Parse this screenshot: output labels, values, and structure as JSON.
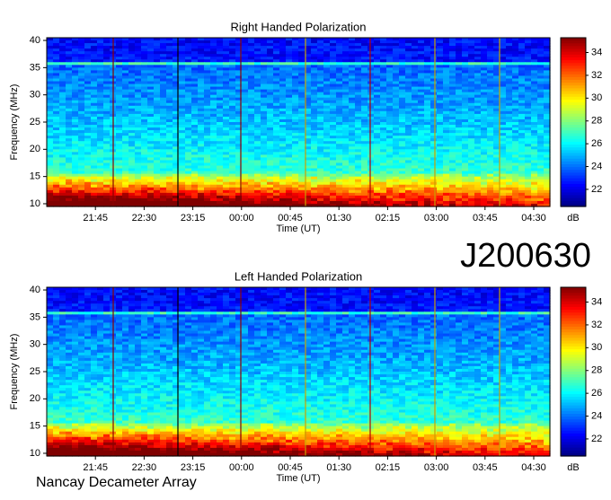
{
  "title": "J200630",
  "footer": "Nancay Decameter Array",
  "chart_data": [
    {
      "type": "spectrogram",
      "title": "Right Handed Polarization",
      "xlabel": "Time (UT)",
      "ylabel": "Frequency (MHz)",
      "xticks": [
        "21:45",
        "22:30",
        "23:15",
        "00:00",
        "00:45",
        "01:30",
        "02:15",
        "03:00",
        "03:45",
        "04:30"
      ],
      "ylim": [
        9.5,
        40.5
      ],
      "yticks": [
        10,
        15,
        20,
        25,
        30,
        35,
        40
      ],
      "colorbar_label": "dB",
      "clim": [
        20.5,
        35.3
      ],
      "cticks": [
        22,
        24,
        26,
        28,
        30,
        32,
        34
      ]
    },
    {
      "type": "spectrogram",
      "title": "Left Handed Polarization",
      "xlabel": "Time (UT)",
      "ylabel": "Frequency (MHz)",
      "xticks": [
        "21:45",
        "22:30",
        "23:15",
        "00:00",
        "00:45",
        "01:30",
        "02:15",
        "03:00",
        "03:45",
        "04:30"
      ],
      "ylim": [
        9.5,
        40.5
      ],
      "yticks": [
        10,
        15,
        20,
        25,
        30,
        35,
        40
      ],
      "colorbar_label": "dB",
      "clim": [
        20.5,
        35.3
      ],
      "cticks": [
        22,
        24,
        26,
        28,
        30,
        32,
        34
      ]
    }
  ]
}
